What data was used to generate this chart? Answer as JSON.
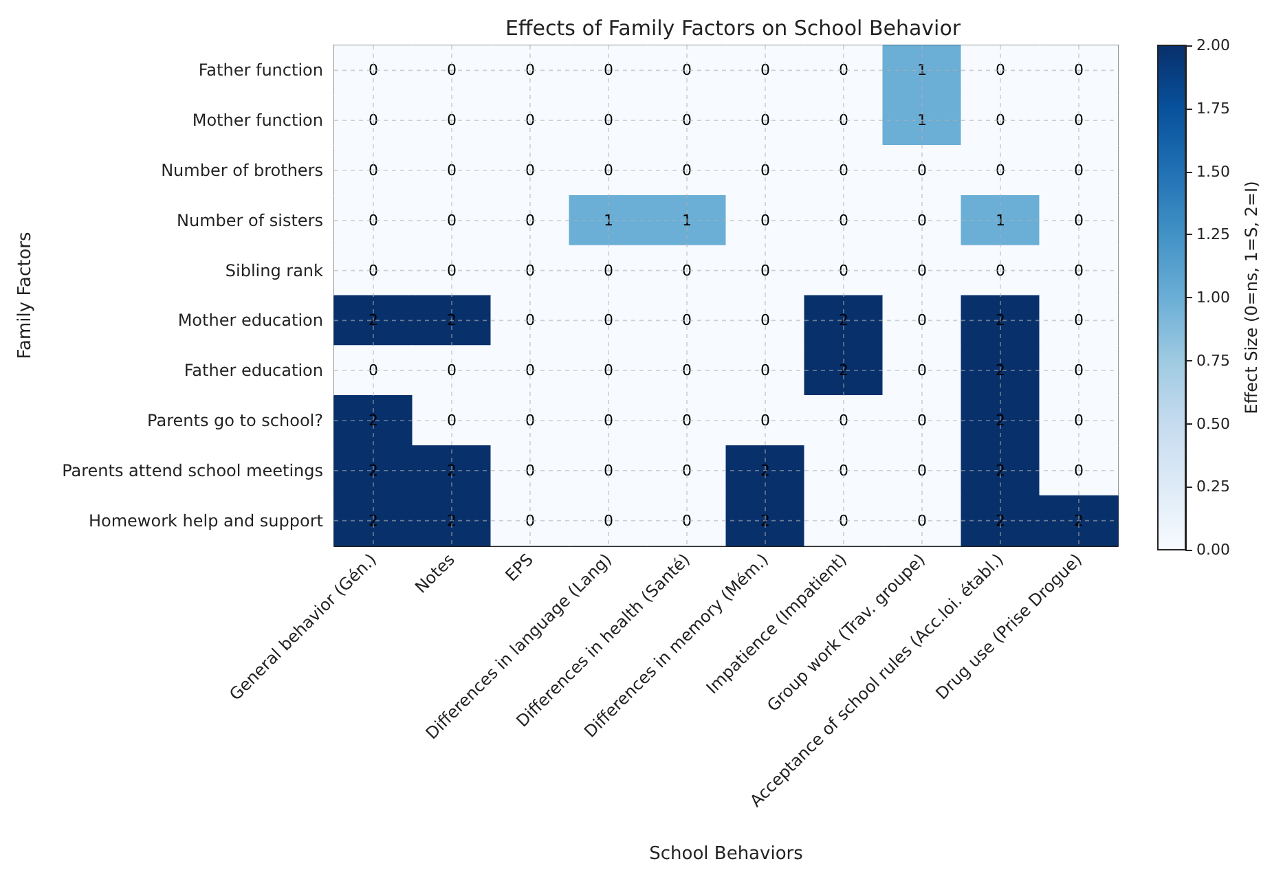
{
  "chart_data": {
    "type": "heatmap",
    "title": "Effects of Family Factors on School Behavior",
    "xlabel": "School Behaviors",
    "ylabel": "Family Factors",
    "clabel": "Effect Size (0=ns, 1=S, 2=I)",
    "categories": [
      "General behavior (Gén.)",
      "Notes",
      "EPS",
      "Differences in language (Lang)",
      "Differences in health (Santé)",
      "Differences in memory (Mém.)",
      "Impatience (Impatient)",
      "Group work (Trav. groupe)",
      "Acceptance of school rules (Acc.loi. établ.)",
      "Drug use (Prise Drogue)"
    ],
    "y_categories": [
      "Father function",
      "Mother function",
      "Number of brothers",
      "Number of sisters",
      "Sibling rank",
      "Mother education",
      "Father education",
      "Parents go to school?",
      "Parents attend school meetings",
      "Homework help and support"
    ],
    "cells": [
      [
        0,
        0,
        0,
        0,
        0,
        0,
        0,
        1,
        0,
        0
      ],
      [
        0,
        0,
        0,
        0,
        0,
        0,
        0,
        1,
        0,
        0
      ],
      [
        0,
        0,
        0,
        0,
        0,
        0,
        0,
        0,
        0,
        0
      ],
      [
        0,
        0,
        0,
        1,
        1,
        0,
        0,
        0,
        1,
        0
      ],
      [
        0,
        0,
        0,
        0,
        0,
        0,
        0,
        0,
        0,
        0
      ],
      [
        2,
        2,
        0,
        0,
        0,
        0,
        2,
        0,
        2,
        0
      ],
      [
        0,
        0,
        0,
        0,
        0,
        0,
        2,
        0,
        2,
        0
      ],
      [
        2,
        0,
        0,
        0,
        0,
        0,
        0,
        0,
        2,
        0
      ],
      [
        2,
        2,
        0,
        0,
        0,
        2,
        0,
        0,
        2,
        0
      ],
      [
        2,
        2,
        0,
        0,
        0,
        2,
        0,
        0,
        2,
        2
      ]
    ],
    "clim": [
      0,
      2
    ],
    "cticks": [
      {
        "value": 0,
        "label": "0.00"
      },
      {
        "value": 0.25,
        "label": "0.25"
      },
      {
        "value": 0.5,
        "label": "0.50"
      },
      {
        "value": 0.75,
        "label": "0.75"
      },
      {
        "value": 1,
        "label": "1.00"
      },
      {
        "value": 1.25,
        "label": "1.25"
      },
      {
        "value": 1.5,
        "label": "1.50"
      },
      {
        "value": 1.75,
        "label": "1.75"
      },
      {
        "value": 2,
        "label": "2.00"
      }
    ],
    "data_labels": true,
    "grid": true
  }
}
